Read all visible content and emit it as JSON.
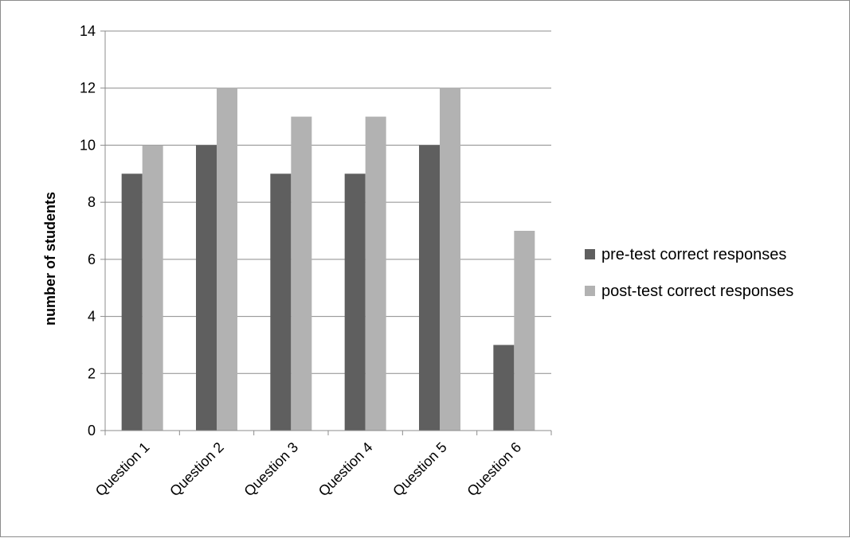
{
  "chart_data": {
    "type": "bar",
    "title": "",
    "xlabel": "",
    "ylabel": "number of students",
    "ylim": [
      0,
      14
    ],
    "yticks": [
      0,
      2,
      4,
      6,
      8,
      10,
      12,
      14
    ],
    "categories": [
      "Question 1",
      "Question 2",
      "Question 3",
      "Question 4",
      "Question 5",
      "Question 6"
    ],
    "series": [
      {
        "name": "pre-test correct responses",
        "color": "#5f5f5f",
        "values": [
          9,
          10,
          9,
          9,
          10,
          3
        ]
      },
      {
        "name": "post-test correct responses",
        "color": "#b2b2b2",
        "values": [
          10,
          12,
          11,
          11,
          12,
          7
        ]
      }
    ],
    "grid": "horizontal",
    "legend_position": "right"
  }
}
